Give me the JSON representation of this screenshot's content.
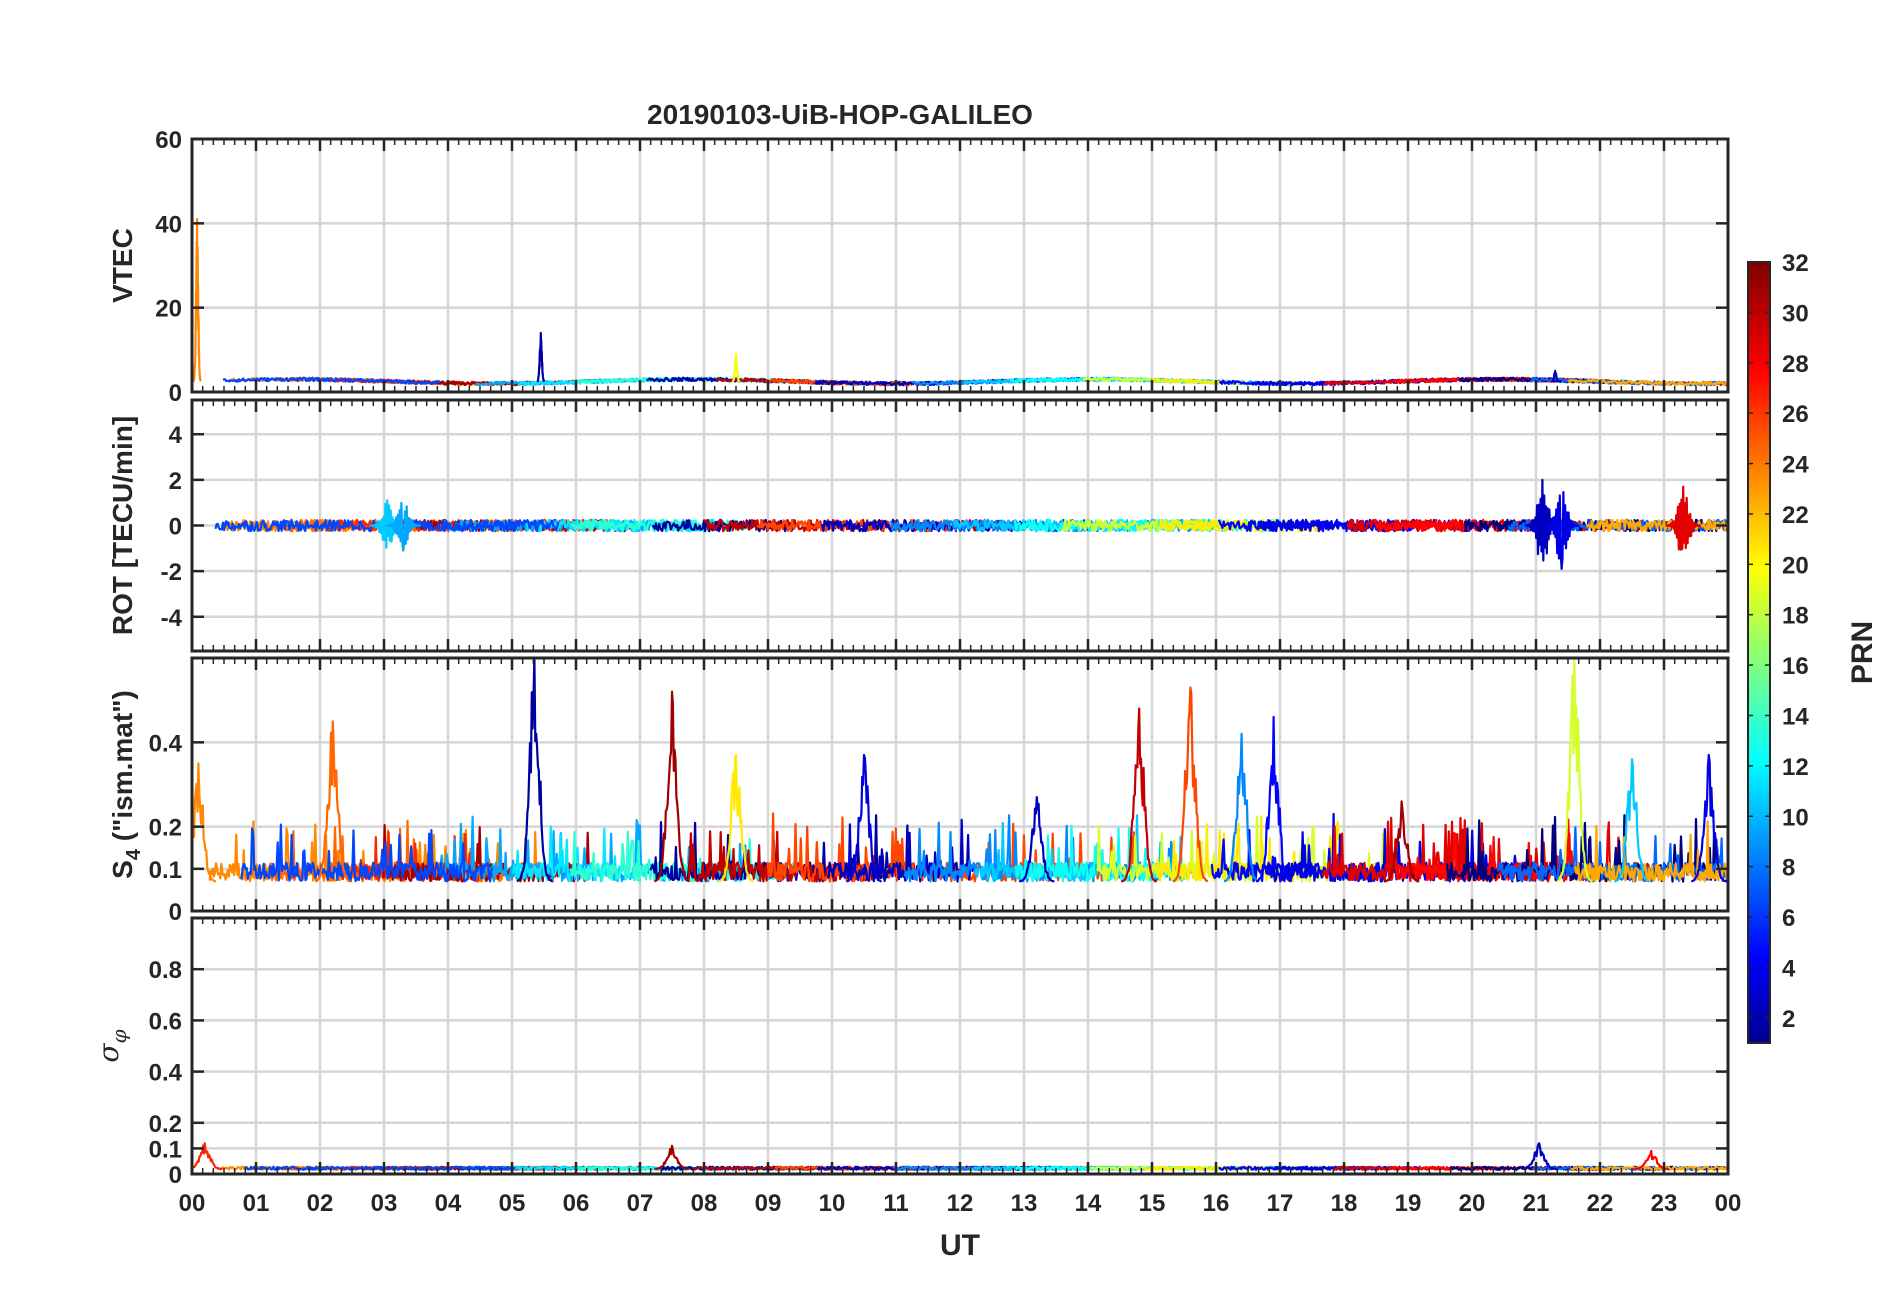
{
  "chart_data": {
    "type": "line",
    "title": "20190103-UiB-HOP-GALILEO",
    "xlabel": "UT",
    "x_range_hours": [
      0,
      24
    ],
    "x_ticks": [
      "00",
      "01",
      "02",
      "03",
      "04",
      "05",
      "06",
      "07",
      "08",
      "09",
      "10",
      "11",
      "12",
      "13",
      "14",
      "15",
      "16",
      "17",
      "18",
      "19",
      "20",
      "21",
      "22",
      "23",
      "00"
    ],
    "grid": true,
    "colorbar": {
      "label": "PRN",
      "range": [
        1,
        32
      ],
      "colormap": "jet",
      "ticks": [
        "2",
        "4",
        "6",
        "8",
        "10",
        "12",
        "14",
        "16",
        "18",
        "20",
        "22",
        "24",
        "26",
        "28",
        "30",
        "32"
      ],
      "placement": "right"
    },
    "panels": [
      {
        "id": "vtec",
        "ylabel": "VTEC",
        "ylim": [
          0,
          60
        ],
        "y_ticks": [
          0,
          20,
          40,
          60
        ],
        "y_tick_labels": [
          "0",
          "20",
          "40",
          "60"
        ],
        "baseline": 2.5,
        "noise": 0.8,
        "events": [
          {
            "t": 0.08,
            "prn": 24,
            "value": 41
          },
          {
            "t": 5.45,
            "prn": 2,
            "value": 14
          },
          {
            "t": 8.5,
            "prn": 20,
            "value": 9
          },
          {
            "t": 21.3,
            "prn": 3,
            "value": 5
          }
        ]
      },
      {
        "id": "rot",
        "ylabel": "ROT [TECU/min]",
        "ylim": [
          -5.5,
          5.5
        ],
        "y_ticks": [
          -4,
          -2,
          0,
          2,
          4
        ],
        "y_tick_labels": [
          "-4",
          "-2",
          "0",
          "2",
          "4"
        ],
        "baseline": 0,
        "noise": 0.25,
        "events": [
          {
            "t": 3.05,
            "prn": 11,
            "value": 1.1
          },
          {
            "t": 3.3,
            "prn": 10,
            "value": -1.1
          },
          {
            "t": 21.1,
            "prn": 3,
            "value": 2.0
          },
          {
            "t": 21.4,
            "prn": 4,
            "value": -1.9
          },
          {
            "t": 23.3,
            "prn": 29,
            "value": 1.7
          }
        ]
      },
      {
        "id": "s4",
        "ylabel": "S4 (\"ism.mat\")",
        "ylabel_main": "S",
        "ylabel_sub": "4",
        "ylabel_rest": " (\"ism.mat\")",
        "ylim": [
          0,
          0.6
        ],
        "y_ticks": [
          0,
          0.1,
          0.2,
          0.4
        ],
        "y_tick_labels": [
          "0",
          "0.1",
          "0.2",
          "0.4"
        ],
        "baseline": 0.07,
        "noise": 0.05,
        "events": [
          {
            "t": 0.1,
            "prn": 24,
            "value": 0.35
          },
          {
            "t": 2.2,
            "prn": 25,
            "value": 0.45
          },
          {
            "t": 5.35,
            "prn": 2,
            "value": 0.6
          },
          {
            "t": 7.5,
            "prn": 31,
            "value": 0.52
          },
          {
            "t": 8.5,
            "prn": 21,
            "value": 0.37
          },
          {
            "t": 10.5,
            "prn": 4,
            "value": 0.37
          },
          {
            "t": 13.2,
            "prn": 3,
            "value": 0.27
          },
          {
            "t": 14.8,
            "prn": 30,
            "value": 0.48
          },
          {
            "t": 15.6,
            "prn": 26,
            "value": 0.53
          },
          {
            "t": 16.4,
            "prn": 9,
            "value": 0.42
          },
          {
            "t": 16.9,
            "prn": 5,
            "value": 0.46
          },
          {
            "t": 18.9,
            "prn": 31,
            "value": 0.26
          },
          {
            "t": 21.6,
            "prn": 19,
            "value": 0.6
          },
          {
            "t": 22.5,
            "prn": 11,
            "value": 0.36
          },
          {
            "t": 23.7,
            "prn": 4,
            "value": 0.37
          }
        ]
      },
      {
        "id": "sigma_phi",
        "ylabel": "σ φ",
        "ylabel_main": "σ",
        "ylabel_sub": "φ",
        "ylim": [
          0,
          1
        ],
        "y_ticks": [
          0,
          0.1,
          0.2,
          0.4,
          0.6,
          0.8
        ],
        "y_tick_labels": [
          "0",
          "0.1",
          "0.2",
          "0.4",
          "0.6",
          "0.8"
        ],
        "baseline": 0.02,
        "noise": 0.012,
        "events": [
          {
            "t": 0.2,
            "prn": 27,
            "value": 0.12
          },
          {
            "t": 7.5,
            "prn": 31,
            "value": 0.11
          },
          {
            "t": 21.05,
            "prn": 3,
            "value": 0.12
          },
          {
            "t": 22.8,
            "prn": 28,
            "value": 0.09
          }
        ]
      }
    ]
  }
}
